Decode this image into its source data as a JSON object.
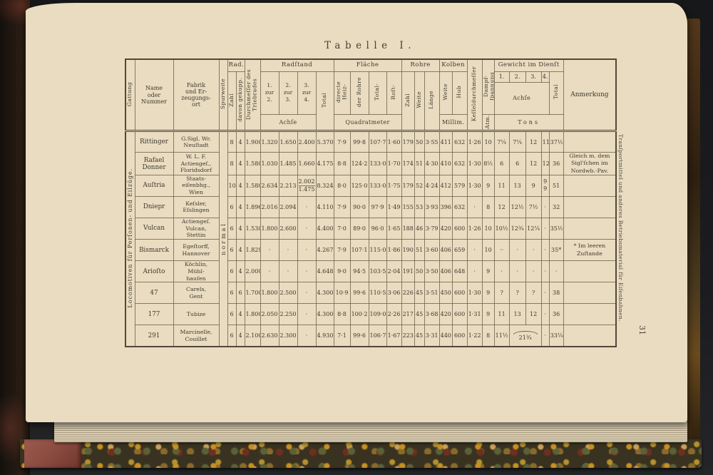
{
  "page": {
    "title": "Tabelle I.",
    "page_number": "31",
    "margin_note": "Tranſportmittel und anderes Betriebsmaterial für Eiſenbahnen.",
    "side_label": "Locomotiven für Perſonen- und Eilzüge.",
    "gauge_label": "normal"
  },
  "colors": {
    "page": "#e9dcc0",
    "ink": "#3e3930",
    "backdrop": "#1b1c1e",
    "leather_red": "#8f4e43",
    "marble_gold": "#c89020",
    "marble_green": "#5a6138"
  },
  "table": {
    "headers": {
      "gattung": "Gattung",
      "name": "Name\noder\nNummer",
      "fabrik": "Fabrik\nund Er-\nzeugungs-\nort",
      "spurweite": "Spurweite",
      "rad": "Rad.",
      "zahl": "Zahl",
      "gekuppelt": "davon gekupp.",
      "durchmesser": "Durchmeſſer des\nTriebrades",
      "radstand": "Radſtand",
      "zur12": "1.\nzur\n2.",
      "zur23": "2.\nzur\n3.",
      "zur34": "3.\nzur\n4.",
      "achse": "Achſe",
      "total_radstand": "Total",
      "flaeche": "Fläche",
      "heiz": "directe\nHeiz-",
      "der_rohre": "der Rohre",
      "total_flaeche": "Total-",
      "rost": "Roſt-",
      "quadratmeter": "Quadratmeter",
      "rohre": "Rohre",
      "zahl_rohre": "Zahl",
      "weite_rohre": "Weite",
      "laenge": "Länge",
      "kolben": "Kolben",
      "weite_kolben": "Weite",
      "hub": "Hub",
      "millim": "Millim.",
      "kessel": "Keſſeldurchmeſſer",
      "dampf": "Dampf-\nſpannung",
      "atm": "Atm.",
      "gewicht": "Gewicht im Dienſt",
      "axle1": "1.",
      "axle2": "2.",
      "axle3": "3.",
      "axle4": "4.",
      "total_gewicht": "Total",
      "tons": "Tons",
      "anmerkung": "Anmerkung"
    },
    "rows": [
      {
        "name": "Rittinger",
        "fabrik": "G.Sigl, Wr.\nNeuſtadt",
        "zahl": "8",
        "gekuppelt": "4",
        "durchmesser": "1.900",
        "r12": "1.320",
        "r23": "1.650",
        "r34": "2.400",
        "rtotal": "5.370",
        "heiz": "7·9",
        "rohre": "99·8",
        "ftotal": "107·7",
        "rost": "1·60",
        "rzahl": "179",
        "rweite": "50",
        "rlaenge": "3·55",
        "kweite": "411",
        "hub": "632",
        "kessel": "1·26",
        "atm": "10",
        "a1": "7¼",
        "a2": "7¼",
        "a3": "12",
        "a4": "11",
        "gtotal": "37½",
        "anmerkung": ""
      },
      {
        "name": "Rafael\nDonner",
        "fabrik": "W. L. F.\nActiengeſ.,\nFloridsdorf",
        "zahl": "8",
        "gekuppelt": "4",
        "durchmesser": "1.580",
        "r12": "1.030",
        "r23": "1.485",
        "r34": "1.660",
        "rtotal": "4.175",
        "heiz": "8·8",
        "rohre": "124·2",
        "ftotal": "133·0",
        "rost": "1·70",
        "rzahl": "174",
        "rweite": "51",
        "rlaenge": "4·30",
        "kweite": "410",
        "hub": "632",
        "kessel": "1·30",
        "atm": "8½",
        "a1": "6",
        "a2": "6",
        "a3": "12",
        "a4": "12",
        "gtotal": "36",
        "anmerkung": "Gleich m. dem\nSigl'ſchen im\nNordwb.-Pav."
      },
      {
        "name": "Auſtria",
        "fabrik": "Staats-\neiſenbhg.,\nWien",
        "zahl": "10",
        "gekuppelt": "4",
        "durchmesser": "1.580",
        "r12": "2.634",
        "r23": "2.213",
        "r34": [
          "2.002",
          "1.475"
        ],
        "rtotal": "8.324",
        "heiz": "8·0",
        "rohre": "125·0",
        "ftotal": "133·0",
        "rost": "1·75",
        "rzahl": "179",
        "rweite": "52",
        "rlaenge": "4·24",
        "kweite": "412",
        "hub": "579",
        "kessel": "1·30",
        "atm": "9",
        "a1": "11",
        "a2": "13",
        "a3": "9",
        "a4": [
          "9",
          "9"
        ],
        "gtotal": "51",
        "anmerkung": ""
      },
      {
        "name": "Dniepr",
        "fabrik": "Keſsler,\nEſslingen",
        "zahl": "6",
        "gekuppelt": "4",
        "durchmesser": "1.896",
        "r12": "2.016",
        "r23": "2.094",
        "r34": "·",
        "rtotal": "4.110",
        "heiz": "7·9",
        "rohre": "90·0",
        "ftotal": "97·9",
        "rost": "1·49",
        "rzahl": "155",
        "rweite": "53",
        "rlaenge": "3·93",
        "kweite": "396",
        "hub": "632",
        "kessel": "·",
        "atm": "8",
        "a1": "12",
        "a2": "12½",
        "a3": "7½",
        "a4": "·",
        "gtotal": "32",
        "anmerkung": ""
      },
      {
        "name": "Vulcan",
        "fabrik": "Actiengeſ.\nVulcan,\nStettin",
        "zahl": "6",
        "gekuppelt": "4",
        "durchmesser": "1.530",
        "r12": "1.800",
        "r23": "2.600",
        "r34": "·",
        "rtotal": "4.400",
        "heiz": "7·0",
        "rohre": "89·0",
        "ftotal": "96·0",
        "rost": "1·65",
        "rzahl": "188",
        "rweite": "46",
        "rlaenge": "3·79",
        "kweite": "420",
        "hub": "600",
        "kessel": "1·26",
        "atm": "10",
        "a1": "10½",
        "a2": "12¾",
        "a3": "12¼",
        "a4": "·",
        "gtotal": "35½",
        "anmerkung": ""
      },
      {
        "name": "Bismarck",
        "fabrik": "Egeſtorff,\nHannover",
        "zahl": "6",
        "gekuppelt": "4",
        "durchmesser": "1.829",
        "r12": "·",
        "r23": "·",
        "r34": "·",
        "rtotal": "4.267",
        "heiz": "7·9",
        "rohre": "107·1",
        "ftotal": "115·0",
        "rost": "1·86",
        "rzahl": "190",
        "rweite": "51",
        "rlaenge": "3·60",
        "kweite": "406",
        "hub": "659",
        "kessel": "·",
        "atm": "10",
        "a1": "··",
        "a2": "·",
        "a3": "·",
        "a4": "·",
        "gtotal": "35*",
        "anmerkung": "* Im leeren\nZuſtande"
      },
      {
        "name": "Arioſto",
        "fabrik": "Köchlin,\nMühl-\nhauſen",
        "zahl": "6",
        "gekuppelt": "4",
        "durchmesser": "2.000",
        "r12": "·",
        "r23": "·",
        "r34": "·",
        "rtotal": "4.648",
        "heiz": "9·0",
        "rohre": "94·5",
        "ftotal": "103·5",
        "rost": "2·04",
        "rzahl": "191",
        "rweite": "50",
        "rlaenge": "3·50",
        "kweite": "406",
        "hub": "648",
        "kessel": "·",
        "atm": "9",
        "a1": "·",
        "a2": "·",
        "a3": "·",
        "a4": "·",
        "gtotal": "·",
        "anmerkung": ""
      },
      {
        "name": "47",
        "fabrik": "Carels,\nGent",
        "zahl": "6",
        "gekuppelt": "6",
        "durchmesser": "1.700",
        "r12": "1.800",
        "r23": "2.500",
        "r34": "·",
        "rtotal": "4.300",
        "heiz": "10·9",
        "rohre": "99·6",
        "ftotal": "110·5",
        "rost": "3·06",
        "rzahl": "226",
        "rweite": "45",
        "rlaenge": "3·51",
        "kweite": "450",
        "hub": "600",
        "kessel": "1·30",
        "atm": "9",
        "a1": "?",
        "a2": "?",
        "a3": "?",
        "a4": "·",
        "gtotal": "38",
        "anmerkung": ""
      },
      {
        "name": "177",
        "fabrik": "Tubize",
        "zahl": "6",
        "gekuppelt": "4",
        "durchmesser": "1.800",
        "r12": "2.050",
        "r23": "2.250",
        "r34": "·",
        "rtotal": "4.300",
        "heiz": "8·8",
        "rohre": "100·2",
        "ftotal": "109·0",
        "rost": "2·26",
        "rzahl": "217",
        "rweite": "45",
        "rlaenge": "3·68",
        "kweite": "420",
        "hub": "600",
        "kessel": "1·31",
        "atm": "9",
        "a1": "11",
        "a2": "13",
        "a3": "12",
        "a4": "·",
        "gtotal": "36",
        "anmerkung": ""
      },
      {
        "name": "291",
        "fabrik": "Marcinelle,\nCouillet",
        "zahl": "6",
        "gekuppelt": "4",
        "durchmesser": "2.100",
        "r12": "2.630",
        "r23": "2.300",
        "r34": "·",
        "rtotal": "4.930",
        "heiz": "7·1",
        "rohre": "99·6",
        "ftotal": "106·7",
        "rost": "1·67",
        "rzahl": "223",
        "rweite": "45",
        "rlaenge": "3·31",
        "kweite": "440",
        "hub": "600",
        "kessel": "1·22",
        "atm": "8",
        "a1": "11½",
        "a2": "21¾",
        "a2_colspan": 2,
        "a4": "·",
        "gtotal": "33¼",
        "anmerkung": ""
      }
    ]
  }
}
